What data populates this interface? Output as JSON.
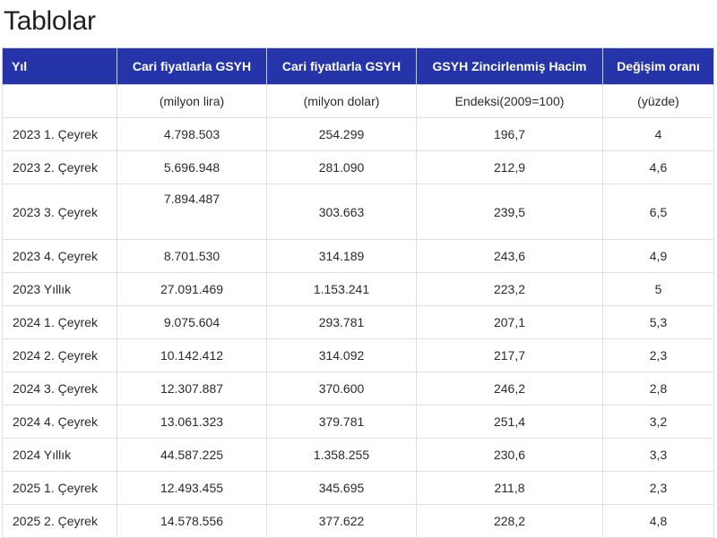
{
  "page": {
    "title": "Tablolar"
  },
  "table": {
    "headers": [
      "Yıl",
      "Cari fiyatlarla GSYH",
      "Cari fiyatlarla GSYH",
      "GSYH Zincirlenmiş Hacim",
      "Değişim oranı"
    ],
    "units": [
      "",
      "(milyon lira)",
      "(milyon dolar)",
      "Endeksi(2009=100)",
      "(yüzde)"
    ],
    "rows": [
      [
        "2023 1. Çeyrek",
        "4.798.503",
        "254.299",
        "196,7",
        "4"
      ],
      [
        "2023 2. Çeyrek",
        "5.696.948",
        "281.090",
        "212,9",
        "4,6"
      ],
      [
        "2023 3. Çeyrek",
        "7.894.487",
        "303.663",
        "239,5",
        "6,5"
      ],
      [
        "2023 4. Çeyrek",
        "8.701.530",
        "314.189",
        "243,6",
        "4,9"
      ],
      [
        "2023 Yıllık",
        "27.091.469",
        "1.153.241",
        "223,2",
        "5"
      ],
      [
        "2024 1. Çeyrek",
        "9.075.604",
        "293.781",
        "207,1",
        "5,3"
      ],
      [
        "2024 2. Çeyrek",
        "10.142.412",
        "314.092",
        "217,7",
        "2,3"
      ],
      [
        "2024 3. Çeyrek",
        "12.307.887",
        "370.600",
        "246,2",
        "2,8"
      ],
      [
        "2024 4. Çeyrek",
        "13.061.323",
        "379.781",
        "251,4",
        "3,2"
      ],
      [
        "2024 Yıllık",
        "44.587.225",
        "1.358.255",
        "230,6",
        "3,3"
      ],
      [
        "2025 1. Çeyrek",
        "12.493.455",
        "345.695",
        "211,8",
        "2,3"
      ],
      [
        "2025 2. Çeyrek",
        "14.578.556",
        "377.622",
        "228,2",
        "4,8"
      ]
    ]
  },
  "colors": {
    "header_background": "#2534a8",
    "header_text": "#ffffff",
    "border": "#dcdfe5"
  }
}
